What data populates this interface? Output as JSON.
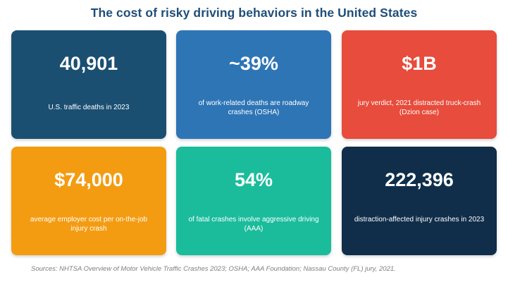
{
  "title": "The cost of risky driving behaviors in the United States",
  "cards": [
    {
      "value": "40,901",
      "description": "U.S. traffic deaths in 2023",
      "color": "#1b4f72"
    },
    {
      "value": "~39%",
      "description": "of work-related deaths are roadway crashes (OSHA)",
      "color": "#2e75b6"
    },
    {
      "value": "$1B",
      "description": "jury verdict, 2021 distracted truck-crash (Dzion case)",
      "color": "#e74c3c"
    },
    {
      "value": "$74,000",
      "description": "average employer cost per on-the-job injury crash",
      "color": "#f39c12"
    },
    {
      "value": "54%",
      "description": "of fatal crashes involve aggressive driving (AAA)",
      "color": "#1abc9c"
    },
    {
      "value": "222,396",
      "description": "distraction-affected injury crashes in 2023",
      "color": "#102e4a"
    }
  ],
  "source": "Sources: NHTSA Overview of Motor Vehicle Traffic Crashes 2023; OSHA; AAA Foundation; Nassau County (FL) jury, 2021."
}
